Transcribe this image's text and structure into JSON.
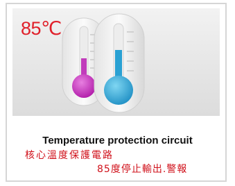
{
  "badge": "85℃",
  "caption": {
    "title": "Temperature protection circuit",
    "lines": [
      "核心溫度保護電路",
      "85度停止輸出.警報"
    ]
  }
}
